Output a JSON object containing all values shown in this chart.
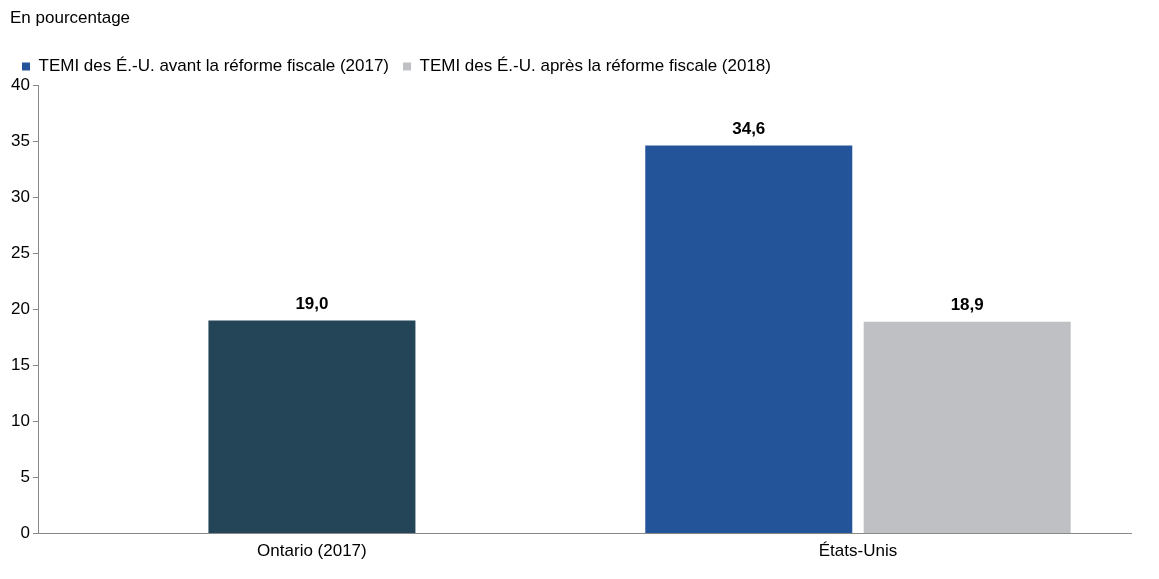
{
  "chart_data": {
    "type": "bar",
    "ylabel": "En pourcentage",
    "categories": [
      "Ontario (2017)",
      "États-Unis"
    ],
    "series": [
      {
        "color": "#234557",
        "values": [
          19.0,
          null
        ],
        "value_labels": [
          "19,0",
          null
        ]
      },
      {
        "name": "TEMI des É.-U. avant la réforme fiscale (2017)",
        "color": "#23549a",
        "values": [
          null,
          34.6
        ],
        "value_labels": [
          null,
          "34,6"
        ]
      },
      {
        "name": "TEMI des É.-U. après la réforme fiscale (2018)",
        "color": "#bfc0c4",
        "values": [
          null,
          18.9
        ],
        "value_labels": [
          null,
          "18,9"
        ]
      }
    ],
    "ylim": [
      0,
      40
    ],
    "yticks": [
      0,
      5,
      10,
      15,
      20,
      25,
      30,
      35,
      40
    ],
    "grid": false,
    "legend": "top left"
  }
}
